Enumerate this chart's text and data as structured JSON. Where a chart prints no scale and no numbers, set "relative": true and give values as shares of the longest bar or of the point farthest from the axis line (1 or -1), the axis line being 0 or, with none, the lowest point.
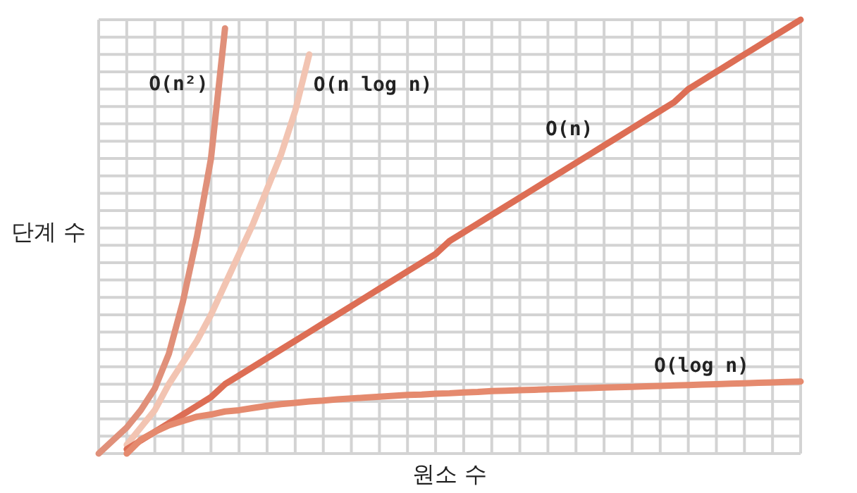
{
  "chart_data": {
    "type": "line",
    "relative": true,
    "xlabel": "원소 수",
    "ylabel": "단계 수",
    "grid": true,
    "line_style": "solid",
    "categories": [
      null,
      null,
      null,
      null,
      null,
      null,
      null,
      null,
      null,
      null,
      null,
      null,
      null,
      null,
      null,
      null,
      null,
      null,
      null,
      null,
      null,
      null,
      null,
      null,
      null,
      null,
      null,
      null,
      null,
      null,
      null,
      null,
      null,
      null,
      null,
      null,
      null,
      null,
      null,
      null,
      null,
      null,
      null,
      null,
      null,
      null,
      null,
      null,
      null,
      null,
      null
    ],
    "series": [
      {
        "name": "O(n²)",
        "color": "#e0907a",
        "values": [
          0.0,
          0.03,
          0.06,
          0.1,
          0.15,
          0.23,
          0.35,
          0.5,
          0.68,
          0.98,
          null,
          null,
          null,
          null,
          null,
          null,
          null,
          null,
          null,
          null,
          null,
          null,
          null,
          null,
          null,
          null,
          null,
          null,
          null,
          null,
          null,
          null,
          null,
          null,
          null,
          null,
          null,
          null,
          null,
          null,
          null,
          null,
          null,
          null,
          null,
          null,
          null,
          null,
          null,
          null,
          null
        ]
      },
      {
        "name": "O(n log n)",
        "color": "#f2c4b2",
        "values": [
          null,
          null,
          0.02,
          0.06,
          0.1,
          0.16,
          0.21,
          0.26,
          0.32,
          0.39,
          0.46,
          0.53,
          0.61,
          0.69,
          0.79,
          0.92,
          null,
          null,
          null,
          null,
          null,
          null,
          null,
          null,
          null,
          null,
          null,
          null,
          null,
          null,
          null,
          null,
          null,
          null,
          null,
          null,
          null,
          null,
          null,
          null,
          null,
          null,
          null,
          null,
          null,
          null,
          null,
          null,
          null,
          null,
          null
        ]
      },
      {
        "name": "O(n)",
        "color": "#dd6e55",
        "values": [
          null,
          null,
          0.01,
          0.03,
          0.05,
          0.07,
          0.09,
          0.11,
          0.13,
          0.16,
          0.18,
          0.2,
          0.22,
          0.24,
          0.26,
          0.28,
          0.3,
          0.32,
          0.34,
          0.36,
          0.38,
          0.4,
          0.42,
          0.44,
          0.46,
          0.49,
          0.51,
          0.53,
          0.55,
          0.57,
          0.59,
          0.61,
          0.63,
          0.65,
          0.67,
          0.69,
          0.71,
          0.73,
          0.75,
          0.77,
          0.79,
          0.81,
          0.84,
          0.86,
          0.88,
          0.9,
          0.92,
          0.94,
          0.96,
          0.98,
          1
        ]
      },
      {
        "name": "O(log n)",
        "color": "#e58a6e",
        "values": [
          null,
          null,
          0.0,
          0.032,
          0.05,
          0.065,
          0.075,
          0.085,
          0.09,
          0.097,
          0.1,
          0.105,
          0.11,
          0.114,
          0.117,
          0.12,
          0.122,
          0.125,
          0.127,
          0.129,
          0.131,
          0.133,
          0.135,
          0.136,
          0.138,
          0.139,
          0.141,
          0.142,
          0.144,
          0.145,
          0.146,
          0.147,
          0.148,
          0.149,
          0.15,
          0.151,
          0.152,
          0.153,
          0.154,
          0.155,
          0.156,
          0.157,
          0.158,
          0.159,
          0.16,
          0.161,
          0.162,
          0.163,
          0.164,
          0.165,
          0.166
        ]
      }
    ]
  }
}
